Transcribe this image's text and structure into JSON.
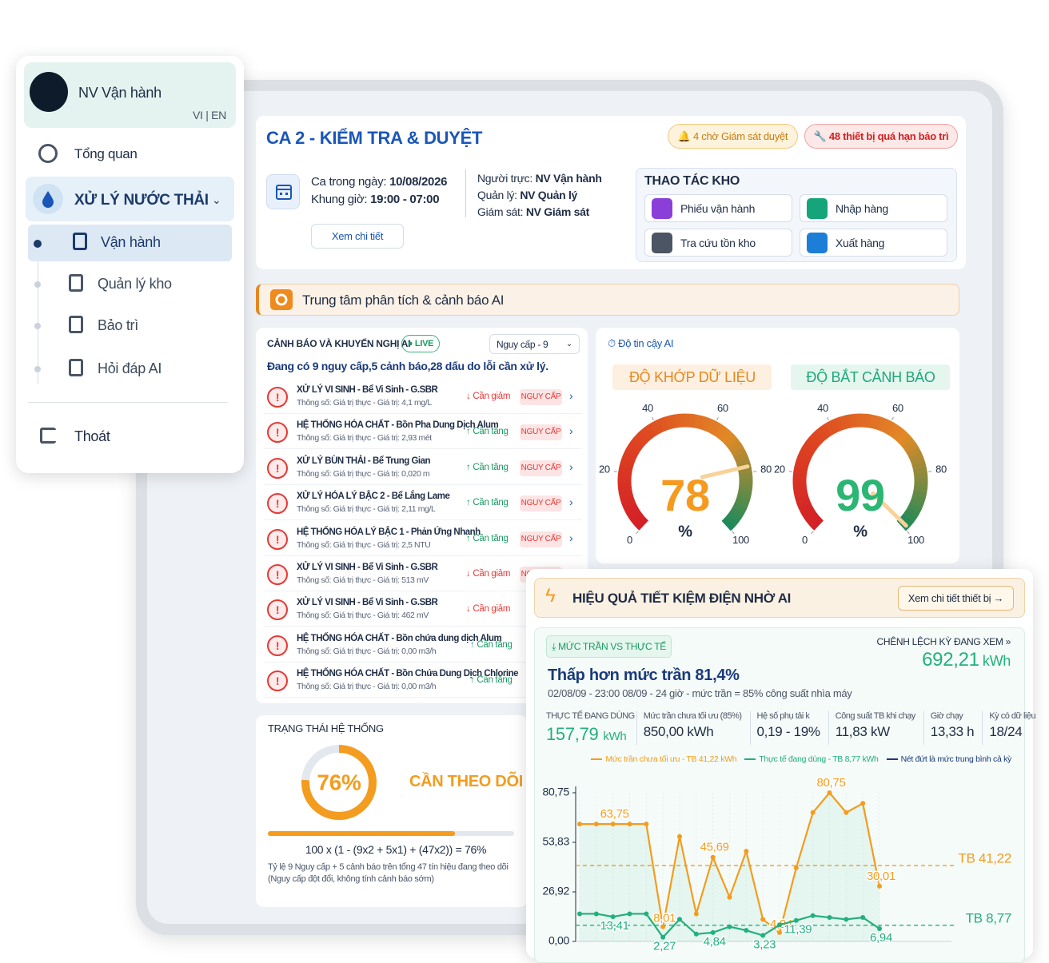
{
  "sidebar": {
    "user": "NV Vận hành",
    "lang": [
      "VI",
      "EN"
    ],
    "overview": "Tổng quan",
    "section": "XỬ LÝ NƯỚC THẢI",
    "subitems": [
      "Vận hành",
      "Quản lý kho",
      "Bảo trì",
      "Hỏi đáp AI"
    ],
    "logout": "Thoát"
  },
  "header": {
    "title": "CA 2 - KIỂM TRA & DUYỆT",
    "badge_pending": "4 chờ Giám sát duyệt",
    "badge_overdue": "48 thiết bị quá hạn bảo trì"
  },
  "shift": {
    "date_label": "Ca trong ngày:",
    "date": "10/08/2026",
    "time_label": "Khung giờ:",
    "time": "19:00 - 07:00",
    "detail_button": "Xem chi tiết",
    "roles": [
      {
        "label": "Người trực:",
        "name": "NV Vận hành"
      },
      {
        "label": "Quản lý:",
        "name": "NV Quản lý"
      },
      {
        "label": "Giám sát:",
        "name": "NV Giám sát"
      }
    ]
  },
  "warehouse": {
    "title": "THAO TÁC KHO",
    "actions": [
      "Phiếu vận hành",
      "Nhập hàng",
      "Tra cứu tồn kho",
      "Xuất hàng"
    ]
  },
  "ai_center": {
    "title": "Trung tâm phân tích & cảnh báo AI"
  },
  "alerts": {
    "title": "CẢNH BÁO VÀ KHUYẾN NGHỊ AI",
    "live": "LIVE",
    "filter": "Nguy cấp - 9",
    "summary": "Đang có 9 nguy cấp,5 cảnh báo,28 dấu do lỗi cần xử lý.",
    "items": [
      {
        "title": "XỬ LÝ VI SINH - Bể Vi Sinh - G.SBR",
        "detail": "Thông số: Giá trị thực - Giá trị: 4,1 mg/L",
        "action": "↓ Cần giảm",
        "level": "NGUY CẤP"
      },
      {
        "title": "HỆ THỐNG HÓA CHẤT - Bồn Pha Dung Dịch Alum",
        "detail": "Thông số: Giá trị thực - Giá trị: 2,93 mét",
        "action": "↑ Cần tăng",
        "level": "NGUY CẤP"
      },
      {
        "title": "XỬ LÝ BÙN THẢI - Bể Trung Gian",
        "detail": "Thông số: Giá trị thực - Giá trị: 0,020 m",
        "action": "↑ Cần tăng",
        "level": "NGUY CẤP"
      },
      {
        "title": "XỬ LÝ HÓA LÝ BẬC 2 - Bể Lắng Lame",
        "detail": "Thông số: Giá trị thực - Giá trị: 2,11 mg/L",
        "action": "↑ Cần tăng",
        "level": "NGUY CẤP"
      },
      {
        "title": "HỆ THỐNG HÓA LÝ BẬC 1 - Phản Ứng Nhanh",
        "detail": "Thông số: Giá trị thực - Giá trị: 2,5 NTU",
        "action": "↑ Cần tăng",
        "level": "NGUY CẤP"
      },
      {
        "title": "XỬ LÝ VI SINH - Bể Vi Sinh - G.SBR",
        "detail": "Thông số: Giá trị thực - Giá trị: 513 mV",
        "action": "↓ Cần giảm",
        "level": "NGUY CẤP"
      },
      {
        "title": "XỬ LÝ VI SINH - Bể Vi Sinh - G.SBR",
        "detail": "Thông số: Giá trị thực - Giá trị: 462 mV",
        "action": "↓ Cần giảm"
      },
      {
        "title": "HỆ THỐNG HÓA CHẤT - Bồn chứa dung dịch Alum",
        "detail": "Thông số: Giá trị thực - Giá trị: 0,00 m3/h",
        "action": "↑ Cần tăng"
      },
      {
        "title": "HỆ THỐNG HÓA CHẤT - Bồn Chứa Dung Dịch Chlorine",
        "detail": "Thông số: Giá trị thực - Giá trị: 0,00 m3/h",
        "action": "↑ Cần tăng"
      }
    ]
  },
  "gauges": {
    "title": "Độ tin cậy AI",
    "ticks": [
      0,
      20,
      40,
      60,
      80,
      100
    ],
    "items": [
      {
        "title": "ĐỘ KHỚP DỮ LIỆU",
        "value": 78,
        "unit": "%",
        "color": "#f59a1e"
      },
      {
        "title": "ĐỘ BẮT CẢNH BÁO",
        "value": 99,
        "unit": "%",
        "color": "#2bb673"
      }
    ]
  },
  "status": {
    "title": "TRẠNG THÁI HỆ THỐNG",
    "value": 76,
    "value_label": "76%",
    "state": "CẦN THEO DÕI",
    "formula": "100 x (1 - (9x2 + 5x1) + (47x2)) = 76%",
    "note": "Tỷ lệ 9 Nguy cấp + 5 cảnh báo trên tổng 47 tín hiệu đang theo dõi (Nguy cấp đột đổi, không tính cảnh báo sớm)"
  },
  "energy": {
    "title": "HIỆU QUẢ TIẾT KIỆM ĐIỆN NHỜ AI",
    "button": "Xem chi tiết thiết bị →",
    "tab": "MỨC TRẦN VS THỰC TẾ",
    "headline": "Thấp hơn mức trần 81,4%",
    "period": "02/08/09 - 23:00 08/09 - 24 giờ - mức trần = 85% công suất nhìa máy",
    "diff_label": "CHÊNH LỆCH KỲ ĐANG XEM »",
    "diff_value": "692,21",
    "diff_unit": "kWh",
    "stats": [
      {
        "label": "THỰC TẾ ĐANG DÙNG",
        "value": "157,79",
        "unit": "kWh"
      },
      {
        "label": "Mức trần chưa tối ưu (85%)",
        "value": "850,00 kWh"
      },
      {
        "label": "Hệ số phụ tải k",
        "value": "0,19 - 19%"
      },
      {
        "label": "Công suất TB khi chạy",
        "value": "11,83 kW"
      },
      {
        "label": "Giờ chạy",
        "value": "13,33 h"
      },
      {
        "label": "Kỳ có dữ liệu",
        "value": "18/24"
      }
    ]
  },
  "chart_data": {
    "type": "line",
    "legend_note": "Nét đứt là mức trung bình cả kỳ",
    "ylim": [
      0,
      80.75
    ],
    "yticks": [
      {
        "value": 0,
        "label": "0,00"
      },
      {
        "value": 26.92,
        "label": "26,92"
      },
      {
        "value": 53.83,
        "label": "53,83"
      },
      {
        "value": 80.75,
        "label": "80,75"
      }
    ],
    "grid": false,
    "series": [
      {
        "name": "Mức trần chưa tối ưu - TB 41,22 kWh",
        "color": "#f39c1f",
        "values": [
          63.75,
          63.75,
          63.75,
          63.75,
          63.75,
          8.01,
          57,
          15,
          45.69,
          24,
          49,
          12,
          4.84,
          40,
          70,
          80.75,
          70,
          75,
          30.01
        ],
        "value_labels": [
          null,
          null,
          "63,75",
          null,
          null,
          "8,01",
          null,
          null,
          "45,69",
          null,
          null,
          null,
          "4,84",
          null,
          null,
          "80,75",
          null,
          null,
          "30,01"
        ]
      },
      {
        "name": "Thực tế đang dùng - TB 8,77 kWh",
        "color": "#22b07d",
        "values": [
          15,
          15,
          13.41,
          15,
          15,
          2.27,
          12,
          4,
          4.84,
          8,
          6,
          3.23,
          9,
          11.39,
          14,
          13,
          12,
          13,
          6.94
        ],
        "value_labels": [
          null,
          null,
          "13,41",
          null,
          null,
          "2,27",
          null,
          null,
          "4,84",
          null,
          null,
          "3,23",
          null,
          "11,39",
          null,
          null,
          null,
          null,
          "6,94"
        ]
      }
    ],
    "reference_lines": [
      {
        "label": "TB 41,22",
        "value": 41.22,
        "color": "#f39c1f"
      },
      {
        "label": "TB 8,77",
        "value": 8.77,
        "color": "#22b07d"
      }
    ]
  }
}
